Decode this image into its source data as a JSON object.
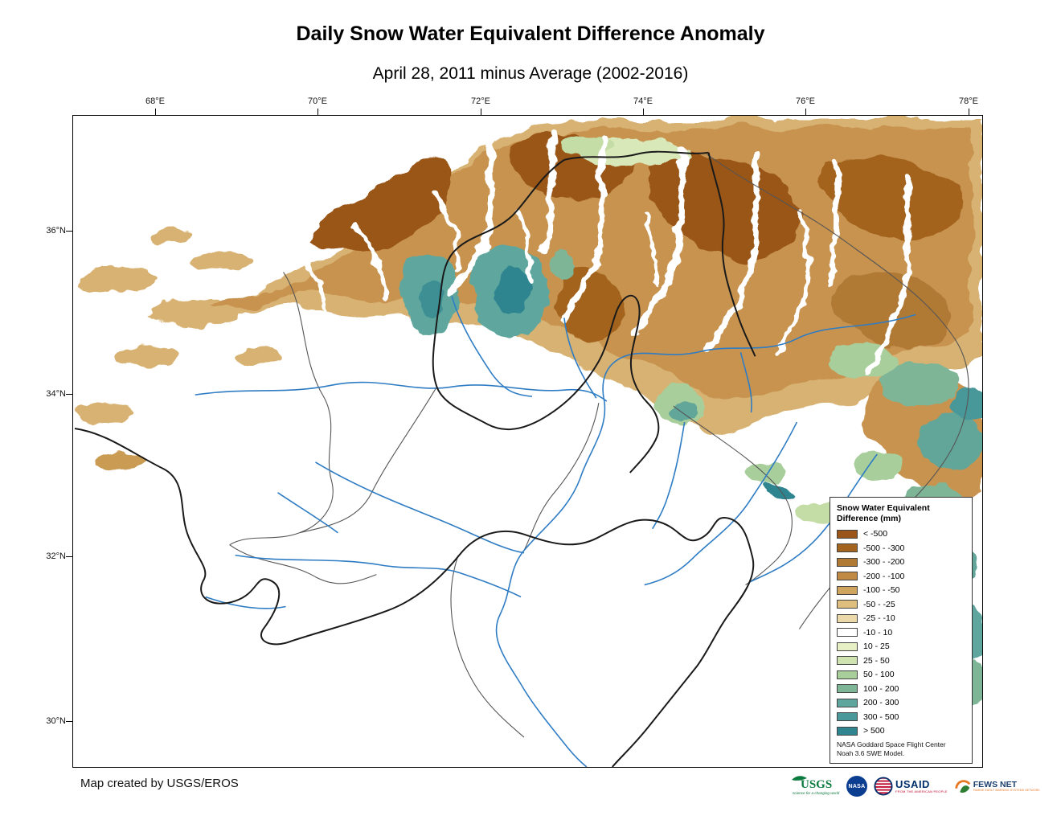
{
  "title": "Daily Snow Water Equivalent Difference Anomaly",
  "subtitle": "April 28, 2011 minus Average (2002-2016)",
  "map": {
    "lon_ticks": [
      "68°E",
      "70°E",
      "72°E",
      "74°E",
      "76°E",
      "78°E"
    ],
    "lat_ticks": [
      "36°N",
      "34°N",
      "32°N",
      "30°N"
    ]
  },
  "legend": {
    "title_line1": "Snow Water Equivalent",
    "title_line2": "Difference (mm)",
    "items": [
      {
        "label": "< -500",
        "color": "#9A5619"
      },
      {
        "label": "-500 - -300",
        "color": "#A3641F"
      },
      {
        "label": "-300 - -200",
        "color": "#B07A35"
      },
      {
        "label": "-200 - -100",
        "color": "#C08A44"
      },
      {
        "label": "-100 - -50",
        "color": "#CFA45E"
      },
      {
        "label": "-50 - -25",
        "color": "#DDBE7F"
      },
      {
        "label": "-25 - -10",
        "color": "#ECD9A9"
      },
      {
        "label": "-10 - 10",
        "color": "#FFFFFF"
      },
      {
        "label": "10 - 25",
        "color": "#E7EFC5"
      },
      {
        "label": "25 - 50",
        "color": "#CFE3B0"
      },
      {
        "label": "50 - 100",
        "color": "#A8CE9B"
      },
      {
        "label": "100 - 200",
        "color": "#7FB597"
      },
      {
        "label": "200 - 300",
        "color": "#5FA79E"
      },
      {
        "label": "300 - 500",
        "color": "#4A9899"
      },
      {
        "label": "> 500",
        "color": "#2F8590"
      }
    ],
    "note_line1": "NASA Goddard Space Flight Center",
    "note_line2": "Noah 3.6 SWE Model."
  },
  "credit": "Map created by USGS/EROS",
  "logos": {
    "usgs": {
      "text": "USGS",
      "tagline": "science for a changing world"
    },
    "nasa": {
      "text": "NASA"
    },
    "usaid": {
      "text": "USAID",
      "tagline": "FROM THE AMERICAN PEOPLE"
    },
    "fewsnet": {
      "text": "FEWS NET",
      "tagline": "FAMINE EARLY WARNING SYSTEMS NETWORK"
    }
  },
  "colors": {
    "river": "#2E7CC4",
    "boundary_major": "#1A1A1A",
    "boundary_minor": "#555555"
  }
}
